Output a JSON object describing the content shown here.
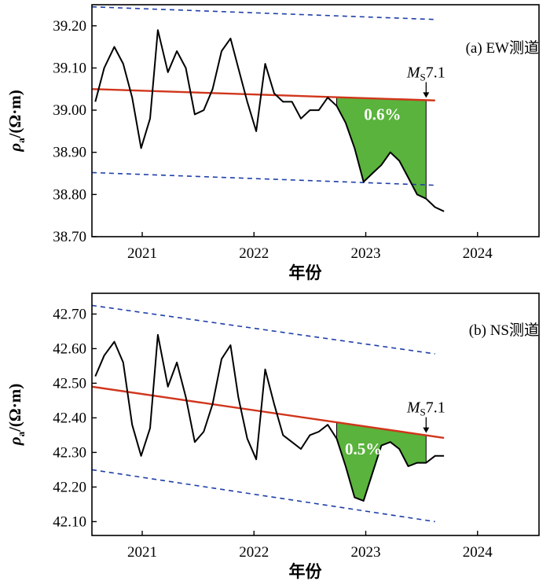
{
  "colors": {
    "data_line": "#000000",
    "trend": "#d0361c",
    "envelope": "#1f3fa8",
    "anomaly_fill": "#5ab33c",
    "pct_text": "#ffffff"
  },
  "chart_data": [
    {
      "type": "line",
      "panel_label": "(a) EW测道",
      "ylabel_main": "ρ",
      "ylabel_sub": "a",
      "ylabel_unit": "/(Ω·m)",
      "xlabel": "年份",
      "xlim": [
        2020.55,
        2024.55
      ],
      "ylim": [
        38.7,
        39.25
      ],
      "xticks": [
        2021,
        2022,
        2023,
        2024
      ],
      "xtick_labels": [
        "2021",
        "2022",
        "2023",
        "2024"
      ],
      "yticks": [
        38.7,
        38.8,
        38.9,
        39.0,
        39.1,
        39.2
      ],
      "ytick_labels": [
        "38.70",
        "38.80",
        "38.90",
        "39.00",
        "39.10",
        "39.20"
      ],
      "series": [
        {
          "x": [
            2020.58,
            2020.66,
            2020.75,
            2020.83,
            2020.91,
            2020.99,
            2021.07,
            2021.14,
            2021.23,
            2021.31,
            2021.39,
            2021.47,
            2021.55,
            2021.63,
            2021.71,
            2021.79,
            2021.86,
            2021.94,
            2022.02,
            2022.1,
            2022.18,
            2022.26,
            2022.34,
            2022.42,
            2022.5,
            2022.58,
            2022.66,
            2022.74,
            2022.82,
            2022.9,
            2022.98,
            2023.06,
            2023.14,
            2023.22,
            2023.3,
            2023.38,
            2023.46,
            2023.54,
            2023.62,
            2023.7
          ],
          "y": [
            39.02,
            39.1,
            39.15,
            39.11,
            39.03,
            38.91,
            38.98,
            39.19,
            39.09,
            39.14,
            39.1,
            38.99,
            39.0,
            39.05,
            39.14,
            39.17,
            39.1,
            39.02,
            38.95,
            39.11,
            39.04,
            39.02,
            39.02,
            38.98,
            39.0,
            39.0,
            39.03,
            39.01,
            38.97,
            38.91,
            38.83,
            38.85,
            38.87,
            38.9,
            38.88,
            38.84,
            38.8,
            38.79,
            38.77,
            38.76
          ]
        }
      ],
      "trend": {
        "x": [
          2020.55,
          2023.62
        ],
        "y": [
          39.05,
          39.023
        ]
      },
      "envelope_upper": {
        "x": [
          2020.55,
          2023.62
        ],
        "y": [
          39.245,
          39.215
        ]
      },
      "envelope_lower": {
        "x": [
          2020.55,
          2023.62
        ],
        "y": [
          38.852,
          38.822
        ]
      },
      "anomaly_region": {
        "x_start": 2022.74,
        "x_end": 2023.54
      },
      "annotations": {
        "percent": "0.6%",
        "percent_at": [
          2023.15,
          38.99
        ],
        "event_prefix": "M",
        "event_sub": "S",
        "event_magnitude": "7.1",
        "event_x": 2023.54
      }
    },
    {
      "type": "line",
      "panel_label": "(b) NS测道",
      "ylabel_main": "ρ",
      "ylabel_sub": "a",
      "ylabel_unit": "/(Ω·m)",
      "xlabel": "年份",
      "xlim": [
        2020.55,
        2024.55
      ],
      "ylim": [
        42.06,
        42.76
      ],
      "xticks": [
        2021,
        2022,
        2023,
        2024
      ],
      "xtick_labels": [
        "2021",
        "2022",
        "2023",
        "2024"
      ],
      "yticks": [
        42.1,
        42.2,
        42.3,
        42.4,
        42.5,
        42.6,
        42.7
      ],
      "ytick_labels": [
        "42.10",
        "42.20",
        "42.30",
        "42.40",
        "42.50",
        "42.60",
        "42.70"
      ],
      "series": [
        {
          "x": [
            2020.58,
            2020.66,
            2020.75,
            2020.83,
            2020.91,
            2020.99,
            2021.07,
            2021.14,
            2021.23,
            2021.31,
            2021.39,
            2021.47,
            2021.55,
            2021.63,
            2021.71,
            2021.79,
            2021.86,
            2021.94,
            2022.02,
            2022.1,
            2022.18,
            2022.26,
            2022.34,
            2022.42,
            2022.5,
            2022.58,
            2022.66,
            2022.74,
            2022.82,
            2022.9,
            2022.98,
            2023.06,
            2023.14,
            2023.22,
            2023.3,
            2023.38,
            2023.46,
            2023.54,
            2023.62,
            2023.7
          ],
          "y": [
            42.52,
            42.58,
            42.62,
            42.56,
            42.38,
            42.29,
            42.37,
            42.64,
            42.49,
            42.56,
            42.46,
            42.33,
            42.36,
            42.44,
            42.57,
            42.61,
            42.46,
            42.34,
            42.28,
            42.54,
            42.44,
            42.35,
            42.33,
            42.31,
            42.35,
            42.36,
            42.38,
            42.34,
            42.26,
            42.17,
            42.16,
            42.24,
            42.32,
            42.33,
            42.31,
            42.26,
            42.27,
            42.27,
            42.29,
            42.29
          ]
        }
      ],
      "trend": {
        "x": [
          2020.55,
          2023.7
        ],
        "y": [
          42.49,
          42.342
        ]
      },
      "envelope_upper": {
        "x": [
          2020.55,
          2023.62
        ],
        "y": [
          42.725,
          42.585
        ]
      },
      "envelope_lower": {
        "x": [
          2020.55,
          2023.62
        ],
        "y": [
          42.25,
          42.1
        ]
      },
      "anomaly_region": {
        "x_start": 2022.74,
        "x_end": 2023.54
      },
      "annotations": {
        "percent": "0.5%",
        "percent_at": [
          2022.98,
          42.31
        ],
        "event_prefix": "M",
        "event_sub": "S",
        "event_magnitude": "7.1",
        "event_x": 2023.54
      }
    }
  ]
}
